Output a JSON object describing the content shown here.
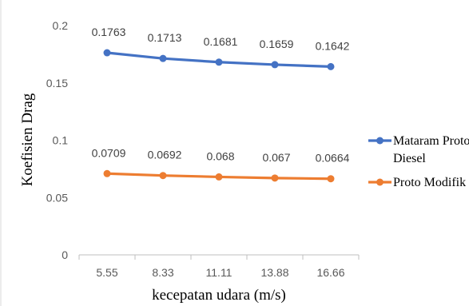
{
  "chart_data": {
    "type": "line",
    "title": "",
    "xlabel": "kecepatan udara (m/s)",
    "ylabel": "Koefisien Drag",
    "categories": [
      "5.55",
      "8.33",
      "11.11",
      "13.88",
      "16.66"
    ],
    "ylim": [
      0,
      0.2
    ],
    "yticks": [
      "0",
      "0.05",
      "0.1",
      "0.15",
      "0.2"
    ],
    "grid": false,
    "legend_position": "right",
    "series": [
      {
        "name": "Mataram Proto Diesel",
        "legend_lines": [
          "Mataram Proto",
          "Diesel"
        ],
        "color": "#4472C4",
        "values": [
          0.1763,
          0.1713,
          0.1681,
          0.1659,
          0.1642
        ],
        "labels": [
          "0.1763",
          "0.1713",
          "0.1681",
          "0.1659",
          "0.1642"
        ]
      },
      {
        "name": "Proto Modifik",
        "legend_lines": [
          "Proto Modifik"
        ],
        "color": "#ED7D31",
        "values": [
          0.0709,
          0.0692,
          0.068,
          0.067,
          0.0664
        ],
        "labels": [
          "0.0709",
          "0.0692",
          "0.068",
          "0.067",
          "0.0664"
        ]
      }
    ]
  }
}
